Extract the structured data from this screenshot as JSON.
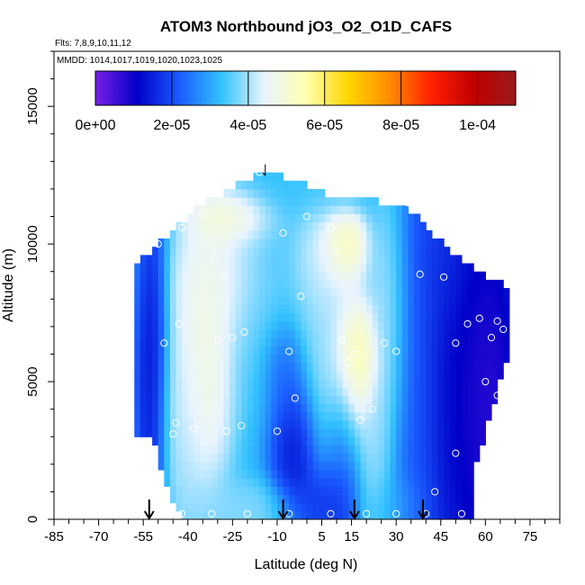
{
  "chart_data": {
    "type": "heatmap",
    "title": "ATOM3 Northbound jO3_O2_O1D_CAFS",
    "flights_note": "Flts: 7,8,9,10,11,12",
    "mmdd_note": "MMDD: 1014,1017,1019,1020,1023,1025",
    "xlabel": "Latitude (deg N)",
    "ylabel": "Altitude (m)",
    "xlim": [
      -85,
      85
    ],
    "ylim": [
      0,
      17000
    ],
    "x_ticks": [
      -85,
      -70,
      -55,
      -40,
      -25,
      -10,
      5,
      15,
      30,
      45,
      60,
      75
    ],
    "x_tick_labels": [
      "-85",
      "-70",
      "-55",
      "-40",
      "-25",
      "-10",
      "5",
      "15",
      "30",
      "45",
      "60",
      "75"
    ],
    "y_ticks": [
      0,
      5000,
      10000,
      15000
    ],
    "y_tick_labels": [
      "0",
      "5000",
      "10000",
      "15000"
    ],
    "colorbar": {
      "min": 0,
      "max": 0.00011,
      "tick_values": [
        0,
        2e-05,
        4e-05,
        6e-05,
        8e-05,
        0.0001
      ],
      "tick_labels": [
        "0e+00",
        "2e-05",
        "4e-05",
        "6e-05",
        "8e-05",
        "1e-04"
      ],
      "colors": [
        "#7a1fe6",
        "#0000c8",
        "#1a5cff",
        "#33c2ff",
        "#e8f4ff",
        "#ffffb0",
        "#ffd700",
        "#ff8c00",
        "#ff2000",
        "#c00000",
        "#9a1a1a"
      ]
    },
    "domain": {
      "lat": [
        -58,
        -52,
        -46,
        -40,
        -34,
        -28,
        -22,
        -16,
        -10,
        -4,
        2,
        8,
        14,
        20,
        26,
        32,
        38,
        44,
        50,
        56,
        62,
        68
      ],
      "top_alt": [
        9200,
        9700,
        10400,
        11000,
        11500,
        11900,
        12300,
        12500,
        12500,
        12300,
        12000,
        11800,
        11700,
        11600,
        11500,
        11300,
        11000,
        10200,
        9500,
        9200,
        8700,
        8500
      ],
      "right_edge_alt": [
        0,
        2000,
        4000,
        6000,
        8500
      ],
      "right_edge_lat": [
        56,
        57,
        62,
        68,
        68
      ]
    },
    "sample_points": [
      [
        -48,
        6400
      ],
      [
        -45,
        3100
      ],
      [
        -43,
        7100
      ],
      [
        -42,
        10600
      ],
      [
        -38,
        11700
      ],
      [
        -35,
        11100
      ],
      [
        -31,
        9500
      ],
      [
        -28,
        8800
      ],
      [
        -30,
        6500
      ],
      [
        -25,
        6600
      ],
      [
        -21,
        6800
      ],
      [
        -22,
        3400
      ],
      [
        -27,
        3200
      ],
      [
        -38,
        3300
      ],
      [
        -44,
        3500
      ],
      [
        -50,
        10000
      ],
      [
        -16,
        12600
      ],
      [
        -8,
        10400
      ],
      [
        -6,
        6100
      ],
      [
        -4,
        4400
      ],
      [
        -10,
        3200
      ],
      [
        -2,
        8100
      ],
      [
        0,
        11000
      ],
      [
        8,
        10600
      ],
      [
        10,
        9700
      ],
      [
        12,
        6500
      ],
      [
        14,
        5700
      ],
      [
        16,
        6000
      ],
      [
        18,
        3600
      ],
      [
        22,
        4000
      ],
      [
        26,
        6400
      ],
      [
        30,
        6100
      ],
      [
        34,
        11500
      ],
      [
        38,
        8900
      ],
      [
        46,
        8800
      ],
      [
        50,
        6400
      ],
      [
        54,
        7100
      ],
      [
        58,
        7300
      ],
      [
        60,
        5000
      ],
      [
        62,
        6600
      ],
      [
        64,
        7200
      ],
      [
        66,
        6900
      ],
      [
        64,
        4500
      ],
      [
        66,
        3300
      ],
      [
        50,
        2400
      ],
      [
        43,
        1000
      ],
      [
        -32,
        200
      ],
      [
        -20,
        200
      ],
      [
        -6,
        200
      ],
      [
        8,
        200
      ],
      [
        20,
        200
      ],
      [
        30,
        200
      ],
      [
        40,
        200
      ],
      [
        52,
        200
      ],
      [
        60,
        200
      ],
      [
        -42,
        200
      ]
    ],
    "blobs": [
      {
        "lat": -34,
        "alt": 5500,
        "value": 5.4e-05,
        "s_lat": 6,
        "s_alt": 2500
      },
      {
        "lat": -30,
        "alt": 8800,
        "value": 5e-05,
        "s_lat": 9,
        "s_alt": 1500
      },
      {
        "lat": -42,
        "alt": 3300,
        "value": 4.2e-05,
        "s_lat": 5,
        "s_alt": 2500
      },
      {
        "lat": -15,
        "alt": 7500,
        "value": 3.6e-05,
        "s_lat": 8,
        "s_alt": 2500
      },
      {
        "lat": -4,
        "alt": 2800,
        "value": 8e-06,
        "s_lat": 5,
        "s_alt": 1800
      },
      {
        "lat": -8,
        "alt": 5500,
        "value": 2e-05,
        "s_lat": 4,
        "s_alt": 1000
      },
      {
        "lat": 8,
        "alt": 9500,
        "value": 4.8e-05,
        "s_lat": 7,
        "s_alt": 1300
      },
      {
        "lat": 13,
        "alt": 10000,
        "value": 6.2e-05,
        "s_lat": 4,
        "s_alt": 700
      },
      {
        "lat": 17,
        "alt": 5800,
        "value": 6.4e-05,
        "s_lat": 4,
        "s_alt": 1200
      },
      {
        "lat": 12,
        "alt": 4500,
        "value": 5e-05,
        "s_lat": 6,
        "s_alt": 2000
      },
      {
        "lat": 3,
        "alt": 6500,
        "value": 4e-05,
        "s_lat": 5,
        "s_alt": 2000
      },
      {
        "lat": 28,
        "alt": 7000,
        "value": 4.4e-05,
        "s_lat": 4,
        "s_alt": 3000
      },
      {
        "lat": 23,
        "alt": 2500,
        "value": 4e-05,
        "s_lat": 3,
        "s_alt": 2000
      },
      {
        "lat": 11,
        "alt": 2000,
        "value": 1.2e-05,
        "s_lat": 4,
        "s_alt": 2000
      },
      {
        "lat": 36,
        "alt": 5000,
        "value": 2.2e-05,
        "s_lat": 5,
        "s_alt": 5000
      },
      {
        "lat": 52,
        "alt": 5000,
        "value": 6e-06,
        "s_lat": 10,
        "s_alt": 6000
      },
      {
        "lat": 62,
        "alt": 4000,
        "value": 2e-06,
        "s_lat": 6,
        "s_alt": 4000
      },
      {
        "lat": -52,
        "alt": 5000,
        "value": 8e-06,
        "s_lat": 3,
        "s_alt": 4000
      },
      {
        "lat": 0,
        "alt": 12000,
        "value": 3.4e-05,
        "s_lat": 14,
        "s_alt": 600
      },
      {
        "lat": -26,
        "alt": 11000,
        "value": 5.6e-05,
        "s_lat": 8,
        "s_alt": 600
      },
      {
        "lat": -20,
        "alt": 300,
        "value": 4e-05,
        "s_lat": 10,
        "s_alt": 700
      },
      {
        "lat": 28,
        "alt": 500,
        "value": 3.2e-05,
        "s_lat": 6,
        "s_alt": 700
      },
      {
        "lat": 45,
        "alt": 9500,
        "value": 1.8e-05,
        "s_lat": 5,
        "s_alt": 1500
      },
      {
        "lat": 5,
        "alt": 500,
        "value": 1.4e-05,
        "s_lat": 5,
        "s_alt": 800
      }
    ],
    "background_value": 3e-05,
    "arrows_lat": [
      -53,
      -8,
      16,
      39
    ],
    "top_marker_lat": -14,
    "top_marker_alt": 12500
  }
}
